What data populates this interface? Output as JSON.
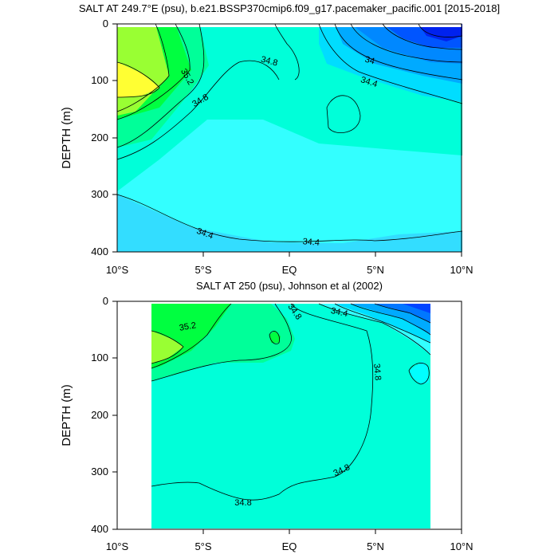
{
  "chart_data": [
    {
      "type": "contour",
      "title": "SALT AT 249.7°E (psu), b.e21.BSSP370cmip6.f09_g17.pacemaker_pacific.001 [2015-2018]",
      "ylabel": "DEPTH (m)",
      "xticks": [
        "10°S",
        "5°S",
        "EQ",
        "5°N",
        "10°N"
      ],
      "yticks": [
        "0",
        "100",
        "200",
        "300",
        "400"
      ],
      "ylim": [
        0,
        400
      ],
      "contour_labels": [
        "34.8",
        "35.2",
        "34.8",
        "34",
        "34.4",
        "34.4",
        "34.4"
      ]
    },
    {
      "type": "contour",
      "title": "SALT AT 250 (psu), Johnson et al (2002)",
      "ylabel": "DEPTH (m)",
      "xticks": [
        "10°S",
        "5°S",
        "EQ",
        "5°N",
        "10°N"
      ],
      "yticks": [
        "0",
        "100",
        "200",
        "300",
        "400"
      ],
      "ylim": [
        0,
        400
      ],
      "contour_labels": [
        "35.2",
        "34.8",
        "34.4",
        "34.8",
        "34.8",
        "34.8"
      ]
    }
  ]
}
